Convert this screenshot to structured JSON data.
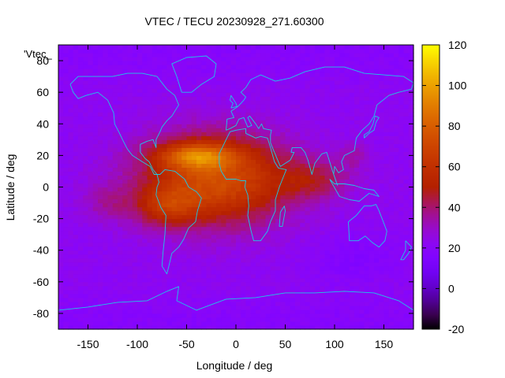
{
  "chart_data": {
    "type": "heatmap",
    "title": "VTEC / TECU 20230928_271.60300",
    "xlabel": "Longitude / deg",
    "ylabel": "Latitude / deg",
    "xlim": [
      -180,
      180
    ],
    "ylim": [
      -90,
      90
    ],
    "xticks": [
      -150,
      -100,
      -50,
      0,
      50,
      100,
      150
    ],
    "yticks": [
      -80,
      -60,
      -40,
      -20,
      0,
      20,
      40,
      60,
      80
    ],
    "xtick_labels": [
      "-150",
      "-100",
      "-50",
      "0",
      "50",
      "100",
      "150"
    ],
    "ytick_labels": [
      "-80",
      "-60",
      "-40",
      "-20",
      "0",
      "20",
      "40",
      "60",
      "80"
    ],
    "legend_key": "'Vtec_",
    "colorbar": {
      "min": -20,
      "max": 120,
      "ticks": [
        -20,
        0,
        20,
        40,
        60,
        80,
        100,
        120
      ],
      "tick_labels": [
        "-20",
        "0",
        "20",
        "40",
        "60",
        "80",
        "100",
        "120"
      ],
      "colormap": "gnuplot default (black-purple-red-orange-yellow)"
    },
    "background_value": 22,
    "features": [
      {
        "name": "main-equatorial-anomaly",
        "lon": -20,
        "lat": 5,
        "sigma_lon": 75,
        "sigma_lat": 28,
        "amplitude": 52
      },
      {
        "name": "northern-crest",
        "lon": -40,
        "lat": 20,
        "sigma_lon": 38,
        "sigma_lat": 8,
        "amplitude": 40
      },
      {
        "name": "southern-crest",
        "lon": -70,
        "lat": -12,
        "sigma_lon": 30,
        "sigma_lat": 12,
        "amplitude": 25
      },
      {
        "name": "indian-ocean-tail",
        "lon": 80,
        "lat": 5,
        "sigma_lon": 35,
        "sigma_lat": 12,
        "amplitude": 18
      },
      {
        "name": "pacific-west-tail",
        "lon": -130,
        "lat": -10,
        "sigma_lon": 25,
        "sigma_lat": 12,
        "amplitude": 10
      },
      {
        "name": "far-east-extension",
        "lon": 120,
        "lat": 20,
        "sigma_lon": 15,
        "sigma_lat": 8,
        "amplitude": 10
      },
      {
        "name": "southern-pacific-minimum",
        "lon": 120,
        "lat": -45,
        "sigma_lon": 40,
        "sigma_lat": 15,
        "amplitude": -6
      }
    ]
  }
}
